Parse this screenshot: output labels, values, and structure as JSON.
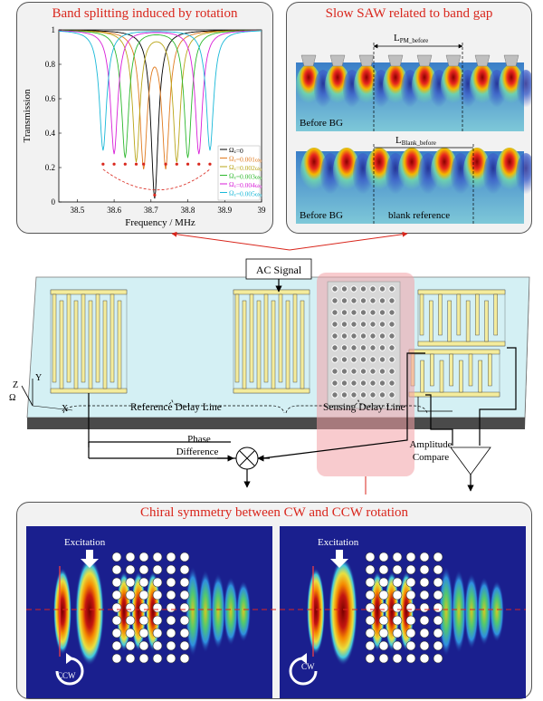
{
  "panels": {
    "band_splitting": {
      "title": "Band splitting induced by rotation"
    },
    "slow_saw": {
      "title": "Slow SAW related to band gap",
      "dim_top": "L",
      "dim_top_sub": "PM_before",
      "dim_bottom": "L",
      "dim_bottom_sub": "Blank_before",
      "caption_top_left": "Before BG",
      "caption_bottom_left": "Before BG",
      "caption_bottom_right": "blank reference"
    },
    "chiral": {
      "title": "Chiral symmetry between CW and CCW rotation",
      "left": {
        "excitation": "Excitation",
        "rotation": "CCW"
      },
      "right": {
        "excitation": "Excitation",
        "rotation": "CW"
      }
    }
  },
  "device": {
    "ac_signal": "AC Signal",
    "reference_delay_line": "Reference Delay Line",
    "sensing_delay_line": "Sensing Delay Line",
    "phase_difference_1": "Phase",
    "phase_difference_2": "Difference",
    "amplitude_compare_1": "Amplitude",
    "amplitude_compare_2": "Compare",
    "axis_x": "X",
    "axis_y": "Y",
    "axis_z": "Z",
    "axis_omega": "Ω"
  },
  "chart_data": {
    "type": "line",
    "xlabel": "Frequency / MHz",
    "ylabel": "Transmission",
    "xlim": [
      38.45,
      39.0
    ],
    "ylim": [
      0,
      1
    ],
    "xticks": [
      38.5,
      38.6,
      38.7,
      38.8,
      38.9,
      39
    ],
    "yticks": [
      0,
      0.2,
      0.4,
      0.6,
      0.8,
      1
    ],
    "legend_position": "bottom-right",
    "series": [
      {
        "name": "Ωz=0",
        "color": "#000000",
        "dips": [
          38.71
        ]
      },
      {
        "name": "Ωz=0.001ω0",
        "color": "#e07a1e",
        "dips": [
          38.68,
          38.74
        ]
      },
      {
        "name": "Ωz=0.002ω0",
        "color": "#b9a517",
        "dips": [
          38.66,
          38.77
        ]
      },
      {
        "name": "Ωz=0.003ω0",
        "color": "#2db82d",
        "dips": [
          38.63,
          38.8
        ]
      },
      {
        "name": "Ωz=0.004ω0",
        "color": "#d81ed8",
        "dips": [
          38.6,
          38.83
        ]
      },
      {
        "name": "Ωz=0.005ω0",
        "color": "#18b8d8",
        "dips": [
          38.57,
          38.86
        ]
      }
    ],
    "legend_labels": [
      {
        "main": "Ω",
        "sub": "z",
        "eq": "=0",
        "w": "",
        "wsub": ""
      },
      {
        "main": "Ω",
        "sub": "z",
        "eq": "=0.001",
        "w": "ω",
        "wsub": "0"
      },
      {
        "main": "Ω",
        "sub": "z",
        "eq": "=0.002",
        "w": "ω",
        "wsub": "0"
      },
      {
        "main": "Ω",
        "sub": "z",
        "eq": "=0.003",
        "w": "ω",
        "wsub": "0"
      },
      {
        "main": "Ω",
        "sub": "z",
        "eq": "=0.004",
        "w": "ω",
        "wsub": "0"
      },
      {
        "main": "Ω",
        "sub": "z",
        "eq": "=0.005",
        "w": "ω",
        "wsub": "0"
      }
    ]
  }
}
